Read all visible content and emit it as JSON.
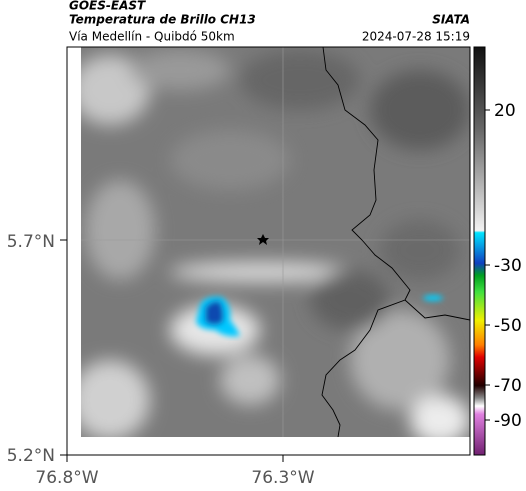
{
  "header": {
    "source": "GOES-EAST",
    "title": "Temperatura de Brillo CH13",
    "brand": "SIATA",
    "subtitle": "Vía Medellín - Quibdó 50km",
    "timestamp": "2024-07-28 15:19"
  },
  "map": {
    "lat_labels": [
      "5.7°N",
      "5.2°N"
    ],
    "lon_labels": [
      "76.8°W",
      "76.3°W"
    ]
  },
  "colorbar": {
    "labels": [
      "20",
      "-30",
      "-50",
      "-70",
      "-90"
    ]
  }
}
